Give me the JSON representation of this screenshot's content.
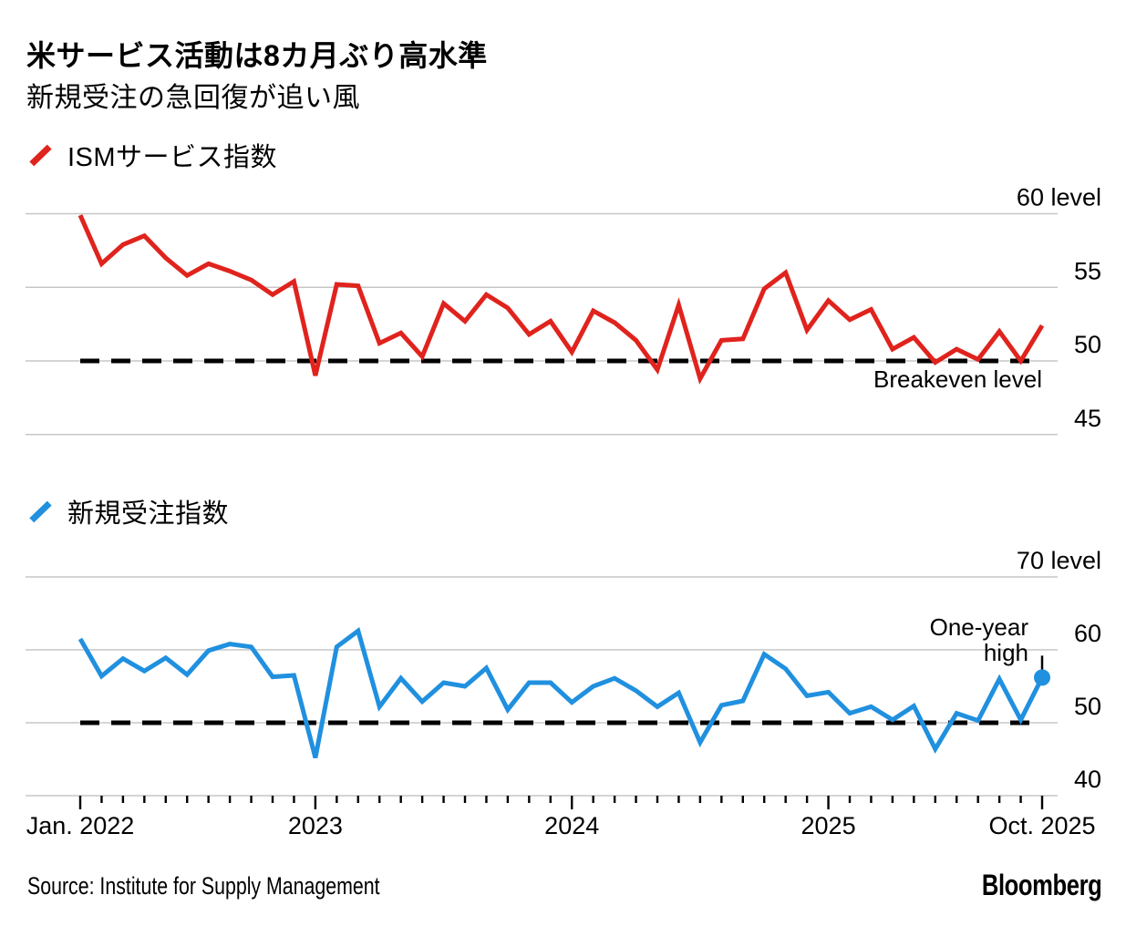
{
  "header": {
    "title": "米サービス活動は8カ月ぶり高水準",
    "subtitle": "新規受注の急回復が追い風"
  },
  "footer": {
    "source": "Source: Institute for Supply Management",
    "brand": "Bloomberg"
  },
  "colors": {
    "ism_line": "#e0231d",
    "new_orders_line": "#2090df",
    "reference_dash": "#000000",
    "gridline": "#c7c7c7",
    "text": "#000000"
  },
  "chart_data": [
    {
      "type": "line",
      "legend": "ISMサービス指数",
      "line_color": "#e0231d",
      "frequency": "monthly",
      "categories": [
        "2022-01",
        "2022-02",
        "2022-03",
        "2022-04",
        "2022-05",
        "2022-06",
        "2022-07",
        "2022-08",
        "2022-09",
        "2022-10",
        "2022-11",
        "2022-12",
        "2023-01",
        "2023-02",
        "2023-03",
        "2023-04",
        "2023-05",
        "2023-06",
        "2023-07",
        "2023-08",
        "2023-09",
        "2023-10",
        "2023-11",
        "2023-12",
        "2024-01",
        "2024-02",
        "2024-03",
        "2024-04",
        "2024-05",
        "2024-06",
        "2024-07",
        "2024-08",
        "2024-09",
        "2024-10",
        "2024-11",
        "2024-12",
        "2025-01",
        "2025-02",
        "2025-03",
        "2025-04",
        "2025-05",
        "2025-06",
        "2025-07",
        "2025-08",
        "2025-09",
        "2025-10"
      ],
      "values": [
        59.9,
        56.6,
        57.9,
        58.5,
        57.0,
        55.8,
        56.6,
        56.1,
        55.5,
        54.5,
        55.4,
        49.0,
        55.2,
        55.1,
        51.2,
        51.9,
        50.3,
        53.9,
        52.7,
        54.5,
        53.6,
        51.8,
        52.7,
        50.6,
        53.4,
        52.6,
        51.4,
        49.4,
        53.8,
        48.8,
        51.4,
        51.5,
        54.9,
        56.0,
        52.1,
        54.1,
        52.8,
        53.5,
        50.8,
        51.6,
        49.9,
        50.8,
        50.1,
        52.0,
        50.0,
        52.4
      ],
      "ylim": [
        45,
        60
      ],
      "ytick_values": [
        60,
        55,
        50,
        45
      ],
      "ytick_labels": [
        "60 level",
        "55",
        "50",
        "45"
      ],
      "grid": true,
      "reference_line": {
        "value": 50,
        "label": "Breakeven level"
      }
    },
    {
      "type": "line",
      "legend": "新規受注指数",
      "line_color": "#2090df",
      "frequency": "monthly",
      "categories": [
        "2022-01",
        "2022-02",
        "2022-03",
        "2022-04",
        "2022-05",
        "2022-06",
        "2022-07",
        "2022-08",
        "2022-09",
        "2022-10",
        "2022-11",
        "2022-12",
        "2023-01",
        "2023-02",
        "2023-03",
        "2023-04",
        "2023-05",
        "2023-06",
        "2023-07",
        "2023-08",
        "2023-09",
        "2023-10",
        "2023-11",
        "2023-12",
        "2024-01",
        "2024-02",
        "2024-03",
        "2024-04",
        "2024-05",
        "2024-06",
        "2024-07",
        "2024-08",
        "2024-09",
        "2024-10",
        "2024-11",
        "2024-12",
        "2025-01",
        "2025-02",
        "2025-03",
        "2025-04",
        "2025-05",
        "2025-06",
        "2025-07",
        "2025-08",
        "2025-09",
        "2025-10"
      ],
      "values": [
        61.5,
        56.4,
        58.8,
        57.1,
        58.9,
        56.6,
        59.9,
        60.8,
        60.4,
        56.3,
        56.5,
        45.2,
        60.4,
        62.6,
        52.2,
        56.1,
        52.9,
        55.5,
        55.0,
        57.5,
        51.8,
        55.5,
        55.5,
        52.8,
        55.0,
        56.1,
        54.4,
        52.2,
        54.1,
        47.3,
        52.4,
        53.0,
        59.4,
        57.4,
        53.7,
        54.2,
        51.3,
        52.2,
        50.4,
        52.3,
        46.4,
        51.3,
        50.3,
        56.0,
        50.4,
        56.2
      ],
      "ylim": [
        40,
        70
      ],
      "ytick_values": [
        70,
        60,
        50,
        40
      ],
      "ytick_labels": [
        "70 level",
        "60",
        "50",
        "40"
      ],
      "grid": true,
      "reference_line": {
        "value": 50
      },
      "xtick_labels": [
        "Jan. 2022",
        "2023",
        "2024",
        "2025",
        "Oct. 2025"
      ],
      "end_marker": true,
      "annotation": {
        "lines": [
          "One-year",
          "high"
        ],
        "target": "last_point"
      }
    }
  ]
}
